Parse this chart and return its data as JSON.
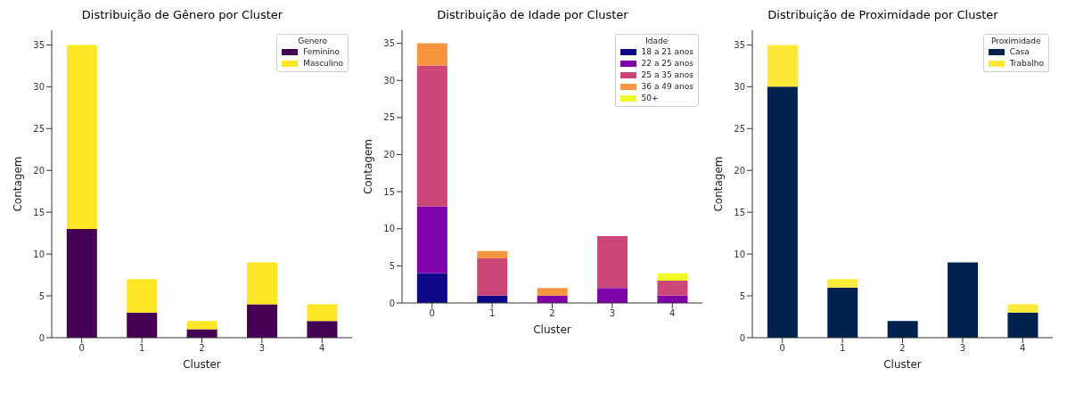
{
  "chart_data": [
    {
      "type": "bar",
      "title": "Distribuição de Gênero por Cluster",
      "xlabel": "Cluster",
      "ylabel": "Contagem",
      "categories": [
        "0",
        "1",
        "2",
        "3",
        "4"
      ],
      "stacked": true,
      "legend_title": "Genero",
      "legend": "top right",
      "ylim": [
        0,
        36.75
      ],
      "yticks": [
        0,
        5,
        10,
        15,
        20,
        25,
        30,
        35
      ],
      "series": [
        {
          "name": "Feminino",
          "color": "#440154",
          "values": [
            13,
            3,
            1,
            4,
            2
          ]
        },
        {
          "name": "Masculino",
          "color": "#fde725",
          "values": [
            22,
            4,
            1,
            5,
            2
          ]
        }
      ]
    },
    {
      "type": "bar",
      "title": "Distribuição de Idade por Cluster",
      "xlabel": "Cluster",
      "ylabel": "Contagem",
      "categories": [
        "0",
        "1",
        "2",
        "3",
        "4"
      ],
      "stacked": true,
      "legend_title": "Idade",
      "legend": "top right",
      "ylim": [
        0,
        36.75
      ],
      "yticks": [
        0,
        5,
        10,
        15,
        20,
        25,
        30,
        35
      ],
      "series": [
        {
          "name": "18 a 21 anos",
          "color": "#0d0887",
          "values": [
            4,
            1,
            0,
            0,
            0
          ]
        },
        {
          "name": "22 a 25 anos",
          "color": "#7e03a8",
          "values": [
            9,
            0,
            1,
            2,
            1
          ]
        },
        {
          "name": "25 a 35 anos",
          "color": "#cc4778",
          "values": [
            19,
            5,
            0,
            7,
            2
          ]
        },
        {
          "name": "36 a 49 anos",
          "color": "#f89540",
          "values": [
            3,
            1,
            1,
            0,
            0
          ]
        },
        {
          "name": "50+",
          "color": "#f0f921",
          "values": [
            0,
            0,
            0,
            0,
            1
          ]
        }
      ]
    },
    {
      "type": "bar",
      "title": "Distribuição de Proximidade por Cluster",
      "xlabel": "Cluster",
      "ylabel": "Contagem",
      "categories": [
        "0",
        "1",
        "2",
        "3",
        "4"
      ],
      "stacked": true,
      "legend_title": "Proximidade",
      "legend": "top right",
      "ylim": [
        0,
        36.75
      ],
      "yticks": [
        0,
        5,
        10,
        15,
        20,
        25,
        30,
        35
      ],
      "series": [
        {
          "name": "Casa",
          "color": "#00224e",
          "values": [
            30,
            6,
            2,
            9,
            3
          ]
        },
        {
          "name": "Trabalho",
          "color": "#fee838",
          "values": [
            5,
            1,
            0,
            0,
            1
          ]
        }
      ]
    }
  ]
}
